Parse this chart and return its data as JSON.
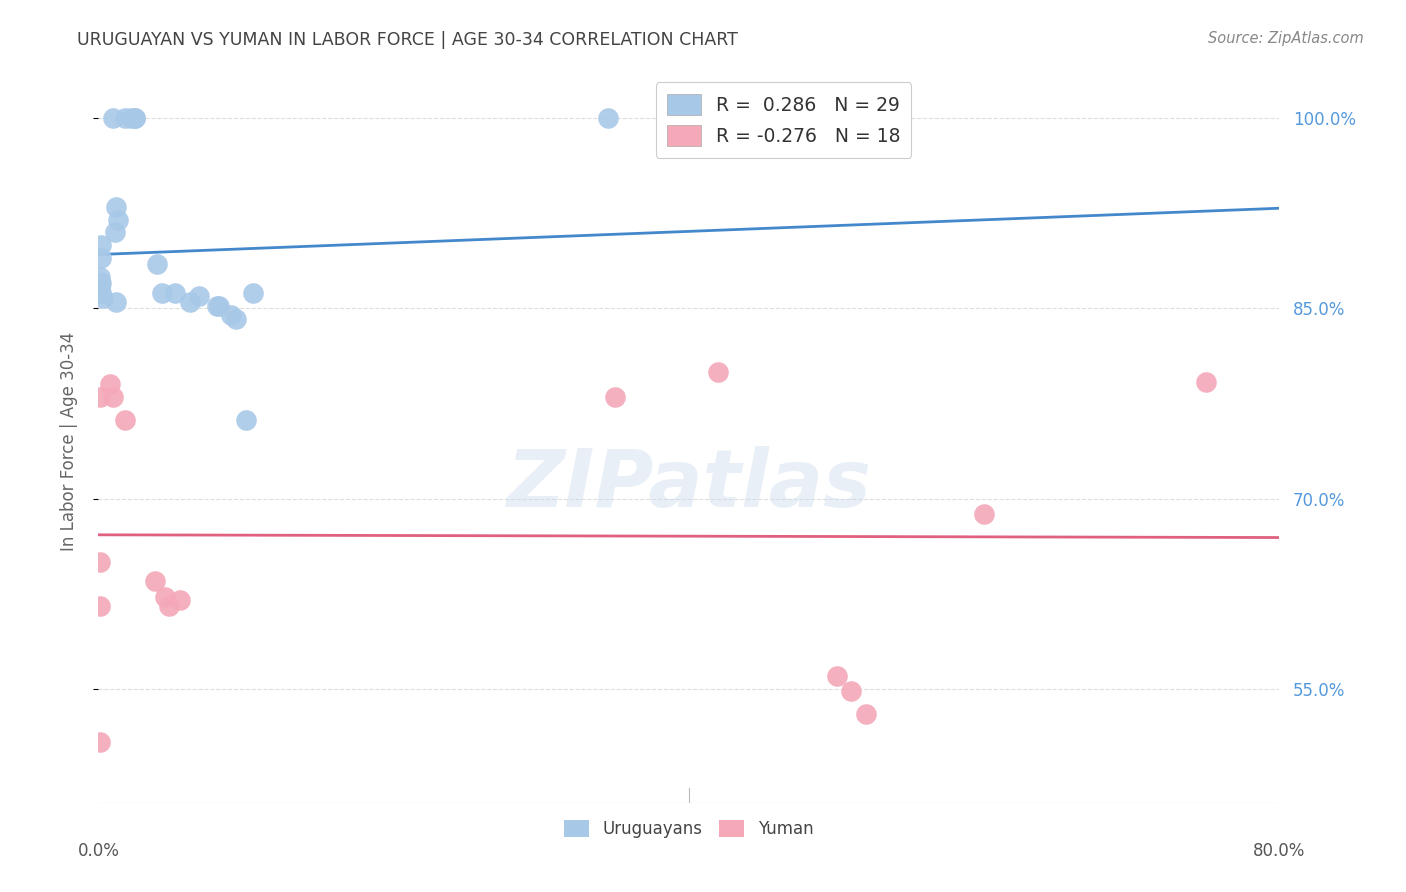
{
  "title": "URUGUAYAN VS YUMAN IN LABOR FORCE | AGE 30-34 CORRELATION CHART",
  "source": "Source: ZipAtlas.com",
  "ylabel": "In Labor Force | Age 30-34",
  "xlim": [
    0.0,
    0.8
  ],
  "ylim": [
    0.46,
    1.03
  ],
  "yticks": [
    0.55,
    0.7,
    0.85,
    1.0
  ],
  "ytick_labels": [
    "55.0%",
    "70.0%",
    "85.0%",
    "100.0%"
  ],
  "blue_color": "#A8C8E8",
  "pink_color": "#F4A8B8",
  "blue_line_color": "#4488CC",
  "pink_line_color": "#E06080",
  "legend_blue_r": "R =  0.286",
  "legend_blue_n": "N = 29",
  "legend_pink_r": "R = -0.276",
  "legend_pink_n": "N = 18",
  "uruguayan_x": [
    0.01,
    0.018,
    0.022,
    0.025,
    0.025,
    0.012,
    0.013,
    0.011,
    0.002,
    0.002,
    0.001,
    0.002,
    0.001,
    0.001,
    0.002,
    0.003,
    0.012,
    0.04,
    0.043,
    0.052,
    0.062,
    0.068,
    0.08,
    0.082,
    0.09,
    0.093,
    0.1,
    0.105,
    0.345
  ],
  "uruguayan_y": [
    1.0,
    1.0,
    1.0,
    1.0,
    1.0,
    0.93,
    0.92,
    0.91,
    0.9,
    0.89,
    0.875,
    0.87,
    0.87,
    0.865,
    0.862,
    0.858,
    0.855,
    0.885,
    0.862,
    0.862,
    0.855,
    0.86,
    0.852,
    0.852,
    0.845,
    0.842,
    0.762,
    0.862,
    1.0
  ],
  "yuman_x": [
    0.001,
    0.008,
    0.01,
    0.018,
    0.038,
    0.045,
    0.048,
    0.055,
    0.001,
    0.001,
    0.001,
    0.35,
    0.42,
    0.5,
    0.51,
    0.52,
    0.6,
    0.75
  ],
  "yuman_y": [
    0.78,
    0.79,
    0.78,
    0.762,
    0.635,
    0.622,
    0.615,
    0.62,
    0.65,
    0.615,
    0.508,
    0.78,
    0.8,
    0.56,
    0.548,
    0.53,
    0.688,
    0.792
  ],
  "watermark": "ZIPatlas",
  "bg_color": "#FFFFFF",
  "title_color": "#444444",
  "axis_label_color": "#666666",
  "right_ytick_color": "#5599DD",
  "grid_color": "#DDDDDD",
  "source_color": "#888888"
}
